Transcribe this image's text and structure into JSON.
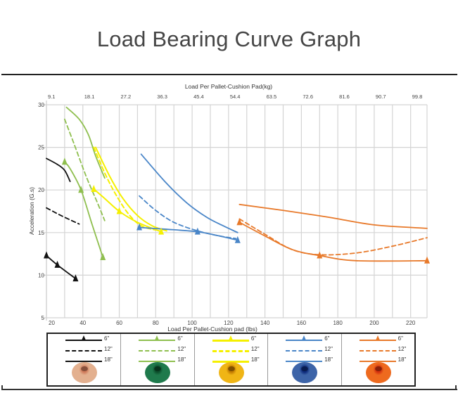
{
  "page": {
    "title": "Load Bearing Curve Graph"
  },
  "chart_data": {
    "type": "line",
    "title": "Load Bearing Curve Graph",
    "xlabel": "Load Per Pallet-Cushion pad (lbs)",
    "x2label": "Load Per Pallet-Cushion Pad(kg)",
    "ylabel": "Acceleration (G.s)",
    "xlim": [
      20,
      229
    ],
    "ylim": [
      5,
      30
    ],
    "grid": true,
    "x_ticks": [
      20,
      40,
      60,
      80,
      100,
      120,
      140,
      160,
      180,
      200,
      220
    ],
    "x_tick_labels": [
      "20",
      "40",
      "60",
      "80",
      "100",
      "120",
      "140",
      "160",
      "180",
      "200",
      "220"
    ],
    "x_minor_grid_step": 10,
    "x2_ticks_lbs": [
      20,
      40,
      60,
      80,
      100,
      120,
      140,
      160,
      180,
      200,
      220
    ],
    "x2_tick_labels": [
      "9.1",
      "18.1",
      "27.2",
      "36.3",
      "45.4",
      "54.4",
      "63.5",
      "72.6",
      "81.6",
      "90.7",
      "99.8"
    ],
    "y_ticks": [
      5,
      10,
      15,
      20,
      25,
      30
    ],
    "y_tick_labels": [
      "5",
      "10",
      "15",
      "20",
      "25",
      "30"
    ],
    "legend_position": "bottom",
    "series": [
      {
        "name": "Beige 6\"",
        "group": "beige",
        "thickness": "6\"",
        "color": "#111111",
        "style": "solid-marker",
        "points": [
          [
            20,
            12.3
          ],
          [
            26,
            11.2
          ],
          [
            36,
            9.6
          ]
        ]
      },
      {
        "name": "Beige 12\"",
        "group": "beige",
        "thickness": "12\"",
        "color": "#111111",
        "style": "dashed",
        "points": [
          [
            20,
            17.9
          ],
          [
            28,
            17.0
          ],
          [
            38,
            16.0
          ]
        ]
      },
      {
        "name": "Beige 18\"",
        "group": "beige",
        "thickness": "18\"",
        "color": "#111111",
        "style": "solid",
        "points": [
          [
            20,
            23.7
          ],
          [
            26,
            23.0
          ],
          [
            30,
            22.3
          ],
          [
            33,
            21.0
          ]
        ]
      },
      {
        "name": "Green 6\"",
        "group": "green",
        "thickness": "6\"",
        "color": "#8fbf4f",
        "style": "solid-marker",
        "points": [
          [
            30,
            23.3
          ],
          [
            33,
            22.5
          ],
          [
            39,
            20.0
          ],
          [
            45,
            16.0
          ],
          [
            51,
            12.1
          ]
        ]
      },
      {
        "name": "Green 12\"",
        "group": "green",
        "thickness": "12\"",
        "color": "#8fbf4f",
        "style": "dashed",
        "points": [
          [
            30,
            28.3
          ],
          [
            35,
            25.5
          ],
          [
            42,
            21.5
          ],
          [
            48,
            18.5
          ],
          [
            52,
            16.4
          ]
        ]
      },
      {
        "name": "Green 18\"",
        "group": "green",
        "thickness": "18\"",
        "color": "#8fbf4f",
        "style": "solid",
        "points": [
          [
            31,
            29.7
          ],
          [
            38,
            28.3
          ],
          [
            43,
            26.5
          ],
          [
            47,
            24.0
          ],
          [
            52,
            21.4
          ]
        ]
      },
      {
        "name": "Yellow 6\"",
        "group": "yellow",
        "thickness": "6\"",
        "color": "#f5f000",
        "style": "solid-marker",
        "points": [
          [
            46,
            20.1
          ],
          [
            52,
            19.0
          ],
          [
            60,
            17.5
          ],
          [
            70,
            16.2
          ],
          [
            83,
            15.1
          ]
        ]
      },
      {
        "name": "Yellow 12\"",
        "group": "yellow",
        "thickness": "12\"",
        "color": "#f5f000",
        "style": "dashed",
        "points": [
          [
            46,
            25.0
          ],
          [
            52,
            22.0
          ],
          [
            58,
            19.5
          ],
          [
            65,
            17.2
          ],
          [
            72,
            15.8
          ],
          [
            80,
            15.3
          ]
        ]
      },
      {
        "name": "Yellow 18\"",
        "group": "yellow",
        "thickness": "18\"",
        "color": "#f5f000",
        "style": "solid",
        "points": [
          [
            47,
            25.0
          ],
          [
            55,
            21.5
          ],
          [
            62,
            19.0
          ],
          [
            70,
            17.0
          ],
          [
            78,
            15.8
          ],
          [
            86,
            15.2
          ]
        ]
      },
      {
        "name": "Blue 6\"",
        "group": "blue",
        "thickness": "6\"",
        "color": "#4a86c8",
        "style": "solid-marker",
        "points": [
          [
            71,
            15.6
          ],
          [
            85,
            15.4
          ],
          [
            103,
            15.1
          ],
          [
            115,
            14.6
          ],
          [
            125,
            14.1
          ]
        ]
      },
      {
        "name": "Blue 12\"",
        "group": "blue",
        "thickness": "12\"",
        "color": "#4a86c8",
        "style": "dashed",
        "points": [
          [
            71,
            19.3
          ],
          [
            80,
            17.6
          ],
          [
            90,
            16.2
          ],
          [
            103,
            15.2
          ],
          [
            115,
            14.6
          ],
          [
            124,
            14.3
          ]
        ]
      },
      {
        "name": "Blue 18\"",
        "group": "blue",
        "thickness": "18\"",
        "color": "#4a86c8",
        "style": "solid",
        "points": [
          [
            72,
            24.2
          ],
          [
            85,
            21.0
          ],
          [
            97,
            18.5
          ],
          [
            108,
            16.8
          ],
          [
            117,
            15.8
          ],
          [
            125,
            15.0
          ]
        ]
      },
      {
        "name": "Orange 6\"",
        "group": "orange",
        "thickness": "6\"",
        "color": "#e8792a",
        "style": "solid-marker",
        "points": [
          [
            126,
            16.2
          ],
          [
            140,
            14.6
          ],
          [
            155,
            13.0
          ],
          [
            170,
            12.3
          ],
          [
            190,
            11.7
          ],
          [
            229,
            11.7
          ]
        ]
      },
      {
        "name": "Orange 12\"",
        "group": "orange",
        "thickness": "12\"",
        "color": "#e8792a",
        "style": "dashed",
        "points": [
          [
            126,
            16.6
          ],
          [
            140,
            14.8
          ],
          [
            155,
            13.0
          ],
          [
            170,
            12.4
          ],
          [
            190,
            12.6
          ],
          [
            210,
            13.4
          ],
          [
            229,
            14.4
          ]
        ]
      },
      {
        "name": "Orange 18\"",
        "group": "orange",
        "thickness": "18\"",
        "color": "#e8792a",
        "style": "solid",
        "points": [
          [
            126,
            18.3
          ],
          [
            150,
            17.6
          ],
          [
            175,
            16.8
          ],
          [
            200,
            15.9
          ],
          [
            229,
            15.5
          ]
        ]
      }
    ],
    "markers": [
      {
        "series": "Beige 6\"",
        "points": [
          [
            20,
            12.3
          ],
          [
            26,
            11.2
          ],
          [
            36,
            9.6
          ]
        ]
      },
      {
        "series": "Green 6\"",
        "points": [
          [
            30,
            23.3
          ],
          [
            39,
            20.0
          ],
          [
            51,
            12.1
          ]
        ]
      },
      {
        "series": "Yellow 6\"",
        "points": [
          [
            46,
            20.1
          ],
          [
            60,
            17.5
          ],
          [
            83,
            15.1
          ]
        ]
      },
      {
        "series": "Blue 6\"",
        "points": [
          [
            71,
            15.6
          ],
          [
            103,
            15.1
          ],
          [
            125,
            14.1
          ]
        ]
      },
      {
        "series": "Orange 6\"",
        "points": [
          [
            126,
            16.2
          ],
          [
            170,
            12.3
          ],
          [
            229,
            11.7
          ]
        ]
      }
    ]
  },
  "legend": {
    "groups": [
      {
        "name": "beige",
        "color": "#111111",
        "pad_color": "#e3b08f",
        "pad_hole": "#d07a5a",
        "labels": [
          "6\"",
          "12\"",
          "18\""
        ]
      },
      {
        "name": "green",
        "color": "#8fbf4f",
        "pad_color": "#1f7a4c",
        "pad_hole": "#0c4f2c",
        "labels": [
          "6\"",
          "12\"",
          "18\""
        ]
      },
      {
        "name": "yellow",
        "color": "#f5f000",
        "pad_color": "#f0b515",
        "pad_hole": "#c27a00",
        "labels": [
          "6\"",
          "12\"",
          "18\""
        ]
      },
      {
        "name": "blue",
        "color": "#4a86c8",
        "pad_color": "#3d64a8",
        "pad_hole": "#0d2a7a",
        "labels": [
          "6\"",
          "12\"",
          "18\""
        ]
      },
      {
        "name": "orange",
        "color": "#e8792a",
        "pad_color": "#ee6a1e",
        "pad_hole": "#d2300e",
        "labels": [
          "6\"",
          "12\"",
          "18\""
        ]
      }
    ]
  }
}
